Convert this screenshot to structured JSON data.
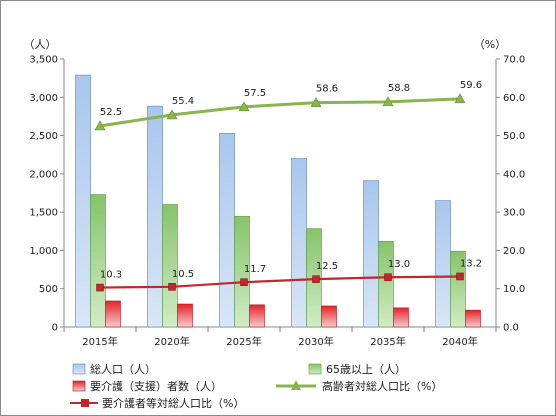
{
  "chart_data": {
    "type": "bar",
    "categories": [
      "2015年",
      "2020年",
      "2025年",
      "2030年",
      "2035年",
      "2040年"
    ],
    "left_axis": {
      "unit": "（人）",
      "ylim": [
        0,
        3500
      ],
      "ticks": [
        0,
        500,
        1000,
        1500,
        2000,
        2500,
        3000,
        3500
      ],
      "tick_labels": [
        "0",
        "500",
        "1,000",
        "1,500",
        "2,000",
        "2,500",
        "3,000",
        "3,500"
      ]
    },
    "right_axis": {
      "unit": "（%）",
      "ylim": [
        0,
        70
      ],
      "ticks": [
        0,
        10,
        20,
        30,
        40,
        50,
        60,
        70
      ],
      "tick_labels": [
        "0.0",
        "10.0",
        "20.0",
        "30.0",
        "40.0",
        "50.0",
        "60.0",
        "70.0"
      ]
    },
    "bar_series": [
      {
        "name": "総人口（人）",
        "color": "#8fb4e3",
        "values": [
          3290,
          2885,
          2530,
          2200,
          1910,
          1650
        ]
      },
      {
        "name": "65歳以上（人）",
        "color": "#8cc870",
        "values": [
          1730,
          1600,
          1445,
          1285,
          1120,
          990
        ]
      },
      {
        "name": "要介護（支援）者数（人）",
        "color": "#e8262a",
        "values": [
          340,
          300,
          290,
          275,
          250,
          220
        ]
      }
    ],
    "line_series": [
      {
        "name": "高齢者対総人口比（%）",
        "color": "#8ab44c",
        "marker": "triangle",
        "values": [
          52.5,
          55.4,
          57.5,
          58.6,
          58.8,
          59.6
        ],
        "labels": [
          "52.5",
          "55.4",
          "57.5",
          "58.6",
          "58.8",
          "59.6"
        ]
      },
      {
        "name": "要介護者等対総人口比（%）",
        "color": "#c0282e",
        "marker": "square",
        "values": [
          10.3,
          10.5,
          11.7,
          12.5,
          13.0,
          13.2
        ],
        "labels": [
          "10.3",
          "10.5",
          "11.7",
          "12.5",
          "13.0",
          "13.2"
        ]
      }
    ],
    "grid": false,
    "legend_position": "bottom"
  }
}
